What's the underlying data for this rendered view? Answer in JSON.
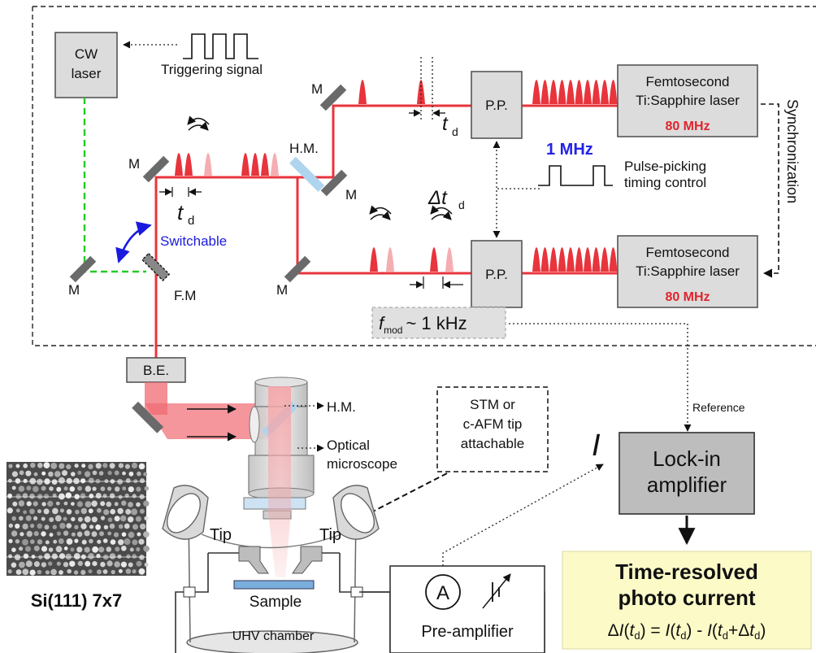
{
  "components": {
    "cw_laser": "CW\nlaser",
    "triggering_signal": "Triggering  signal",
    "fs_laser_top": "Femtosecond\nTi:Sapphire laser",
    "fs_laser_bottom": "Femtosecond\nTi:Sapphire laser",
    "fs_rate_top": "80 MHz",
    "fs_rate_bottom": "80 MHz",
    "pulse_picker_top": "P.P.",
    "pulse_picker_bottom": "P.P.",
    "synchronization": "Synchronization",
    "pp_rate": "1 MHz",
    "pp_timing": "Pulse-picking\ntiming control",
    "fmod": "~ 1 kHz",
    "beam_expander": "B.E.",
    "lockin": "Lock-in\namplifier",
    "reference": "Reference",
    "current_symbol": "I",
    "stm_box": "STM or\nc-AFM tip\nattachable",
    "optical_microscope": "Optical\nmicroscope",
    "preamp": "Pre-amplifier",
    "uhv": "UHV chamber",
    "sample": "Sample",
    "tip_left": "Tip",
    "tip_right": "Tip",
    "ammeter": "A",
    "si_label": "Si(111) 7x7",
    "result_title": "Time-resolved\nphoto current",
    "result_formula": "ΔI(td) = I(td) - I(td+Δtd)"
  },
  "optics": {
    "mirror": "M",
    "half_mirror": "H.M.",
    "flip_mirror": "F.M",
    "switchable": "Switchable",
    "hm_label": "H.M."
  },
  "symbols": {
    "t": "t",
    "d": "d",
    "delta": "Δ",
    "f": "f",
    "mod": "mod"
  }
}
